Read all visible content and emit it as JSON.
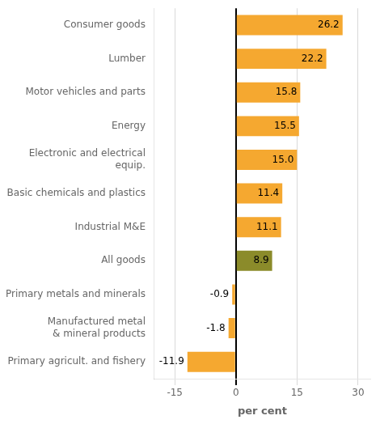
{
  "chart_data": {
    "type": "bar",
    "orientation": "horizontal",
    "categories": [
      "Consumer goods",
      "Lumber",
      "Motor vehicles and parts",
      "Energy",
      "Electronic and electrical\nequip.",
      "Basic chemicals and plastics",
      "Industrial M&E",
      "All goods",
      "Primary metals and minerals",
      "Manufactured metal\n& mineral products",
      "Primary agricult. and fishery"
    ],
    "values": [
      26.2,
      22.2,
      15.8,
      15.5,
      15.0,
      11.4,
      11.1,
      8.9,
      -0.9,
      -1.8,
      -11.9
    ],
    "value_labels": [
      "26.2",
      "22.2",
      "15.8",
      "15.5",
      "15.0",
      "11.4",
      "11.1",
      "8.9",
      "-0.9",
      "-1.8",
      "-11.9"
    ],
    "data_labels": true,
    "colors": [
      "#F5A830",
      "#F5A830",
      "#F5A830",
      "#F5A830",
      "#F5A830",
      "#F5A830",
      "#F5A830",
      "#8B8B2A",
      "#F5A830",
      "#F5A830",
      "#F5A830"
    ],
    "xlabel": "per cent",
    "xlim": [
      -20,
      33
    ],
    "xticks": [
      -15,
      0,
      15,
      30
    ],
    "grid": true
  }
}
